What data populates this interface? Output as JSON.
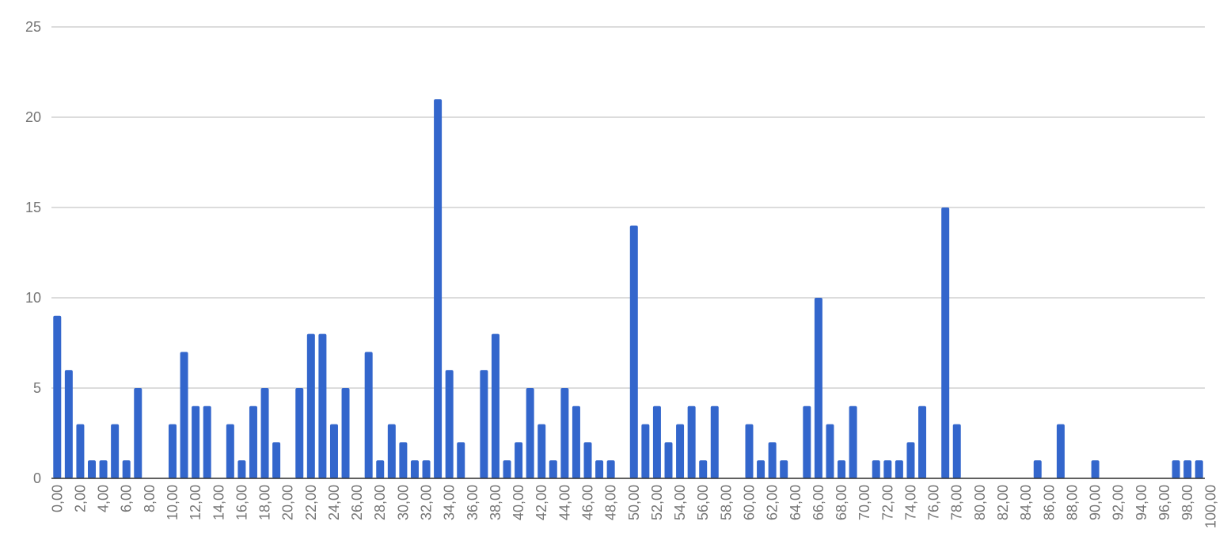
{
  "chart_data": {
    "type": "bar",
    "categories": [
      "0,00",
      null,
      "2,00",
      null,
      "4,00",
      null,
      "6,00",
      null,
      "8,00",
      null,
      "10,00",
      null,
      "12,00",
      null,
      "14,00",
      null,
      "16,00",
      null,
      "18,00",
      null,
      "20,00",
      null,
      "22,00",
      null,
      "24,00",
      null,
      "26,00",
      null,
      "28,00",
      null,
      "30,00",
      null,
      "32,00",
      null,
      "34,00",
      null,
      "36,00",
      null,
      "38,00",
      null,
      "40,00",
      null,
      "42,00",
      null,
      "44,00",
      null,
      "46,00",
      null,
      "48,00",
      null,
      "50,00",
      null,
      "52,00",
      null,
      "54,00",
      null,
      "56,00",
      null,
      "58,00",
      null,
      "60,00",
      null,
      "62,00",
      null,
      "64,00",
      null,
      "66,00",
      null,
      "68,00",
      null,
      "70,00",
      null,
      "72,00",
      null,
      "74,00",
      null,
      "76,00",
      null,
      "78,00",
      null,
      "80,00",
      null,
      "82,00",
      null,
      "84,00",
      null,
      "86,00",
      null,
      "88,00",
      null,
      "90,00",
      null,
      "92,00",
      null,
      "94,00",
      null,
      "96,00",
      null,
      "98,00",
      null,
      "100,00"
    ],
    "values": [
      9,
      6,
      3,
      1,
      1,
      3,
      1,
      5,
      0,
      0,
      3,
      7,
      4,
      4,
      0,
      3,
      1,
      4,
      5,
      2,
      0,
      5,
      8,
      8,
      3,
      5,
      0,
      7,
      1,
      3,
      2,
      1,
      1,
      21,
      6,
      2,
      0,
      6,
      8,
      1,
      2,
      5,
      3,
      1,
      5,
      4,
      2,
      1,
      1,
      0,
      14,
      3,
      4,
      2,
      3,
      4,
      1,
      4,
      0,
      0,
      3,
      1,
      2,
      1,
      0,
      4,
      10,
      3,
      1,
      4,
      0,
      1,
      1,
      1,
      2,
      4,
      0,
      15,
      3,
      0,
      0,
      0,
      0,
      0,
      0,
      1,
      0,
      3,
      0,
      0,
      1,
      0,
      0,
      0,
      0,
      0,
      0,
      1,
      1,
      1,
      0
    ],
    "color": "#3366cc",
    "ylim": [
      0,
      25
    ],
    "yticks": [
      0,
      5,
      10,
      15,
      20,
      25
    ],
    "grid": true
  }
}
